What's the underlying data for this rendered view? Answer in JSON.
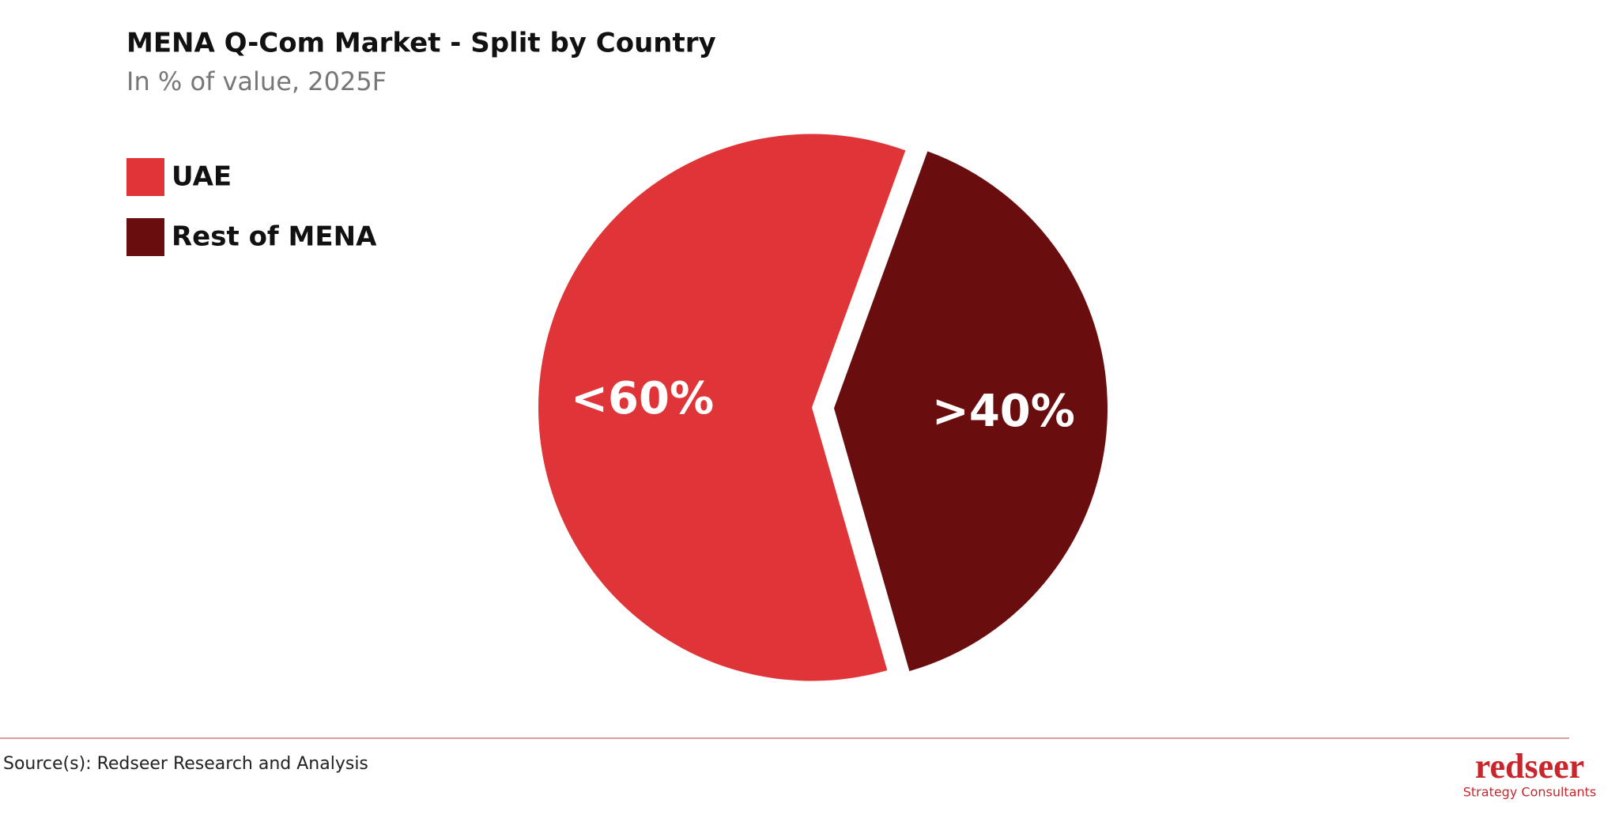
{
  "chart_data": {
    "type": "pie",
    "title": "MENA Q-Com Market - Split by Country",
    "subtitle": "In % of value, 2025F",
    "categories": [
      "UAE",
      "Rest of MENA"
    ],
    "values": [
      60,
      40
    ],
    "value_labels": [
      "<60%",
      ">40%"
    ],
    "colors": [
      "#e03538",
      "#6a0d0f"
    ],
    "legend": "top-left",
    "source": "Source(s): Redseer Research and Analysis"
  },
  "logo": {
    "name": "redseer",
    "tagline": "Strategy Consultants"
  }
}
